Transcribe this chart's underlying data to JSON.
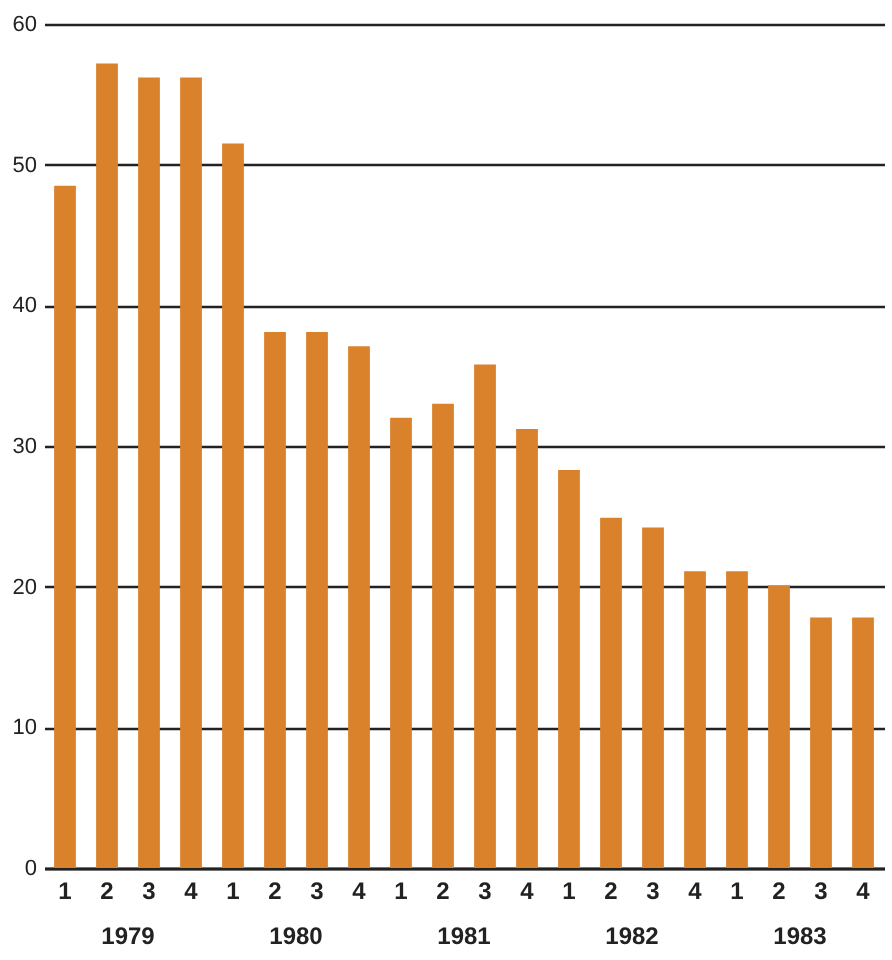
{
  "chart_data": {
    "type": "bar",
    "categories": [
      "1",
      "2",
      "3",
      "4",
      "1",
      "2",
      "3",
      "4",
      "1",
      "2",
      "3",
      "4",
      "1",
      "2",
      "3",
      "4",
      "1",
      "2",
      "3",
      "4"
    ],
    "values": [
      48.5,
      57.2,
      56.2,
      56.2,
      51.5,
      38.1,
      38.1,
      37.1,
      32,
      33,
      35.8,
      31.2,
      28.3,
      24.9,
      24.2,
      21.1,
      21.1,
      20.1,
      17.8,
      17.8
    ],
    "color": "#d9822b",
    "ylim": [
      0,
      60
    ],
    "yticks": [
      0,
      10,
      20,
      30,
      40,
      50,
      60
    ],
    "grid": "y",
    "annotations": [
      "1979",
      "1980",
      "1981",
      "1982",
      "1983"
    ]
  }
}
